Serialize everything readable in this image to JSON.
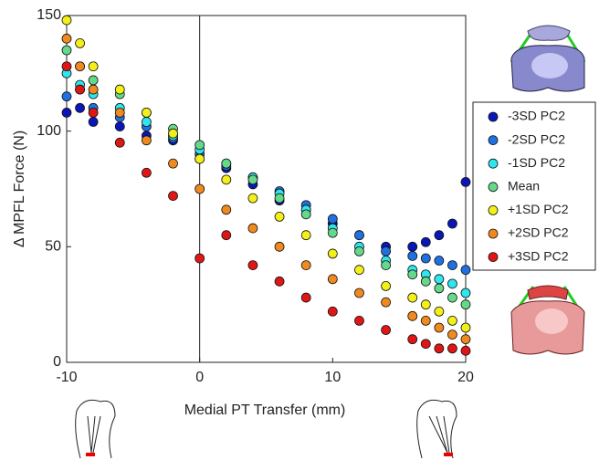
{
  "chart_data": {
    "type": "scatter",
    "xlabel": "Medial PT Transfer (mm)",
    "ylabel": "Δ MPFL Force (N)",
    "xlim": [
      -10,
      20
    ],
    "ylim": [
      0,
      150
    ],
    "xticks": [
      -10,
      0,
      10,
      20
    ],
    "yticks": [
      0,
      50,
      100,
      150
    ],
    "x": [
      -10,
      -9,
      -8,
      -6,
      -4,
      -2,
      0,
      2,
      4,
      6,
      8,
      10,
      12,
      14,
      16,
      17,
      18,
      19,
      20
    ],
    "series": [
      {
        "name": "-3SD PC2",
        "color": "#0b16b8",
        "values": [
          108,
          110,
          104,
          102,
          98,
          96,
          88,
          84,
          77,
          70,
          66,
          60,
          55,
          50,
          50,
          52,
          55,
          60,
          78
        ]
      },
      {
        "name": "-2SD PC2",
        "color": "#2070e0",
        "values": [
          115,
          118,
          110,
          106,
          102,
          97,
          90,
          85,
          80,
          74,
          68,
          62,
          55,
          48,
          46,
          45,
          44,
          42,
          40
        ]
      },
      {
        "name": "-1SD PC2",
        "color": "#2ee6ee",
        "values": [
          125,
          120,
          116,
          110,
          104,
          98,
          92,
          86,
          80,
          73,
          66,
          58,
          50,
          44,
          40,
          38,
          36,
          34,
          30
        ]
      },
      {
        "name": "Mean",
        "color": "#66d88a",
        "values": [
          135,
          128,
          122,
          116,
          108,
          101,
          94,
          86,
          79,
          71,
          64,
          56,
          48,
          42,
          38,
          35,
          32,
          28,
          25
        ]
      },
      {
        "name": "+1SD PC2",
        "color": "#f2f018",
        "values": [
          148,
          138,
          128,
          118,
          108,
          99,
          88,
          79,
          71,
          63,
          55,
          47,
          40,
          33,
          28,
          25,
          22,
          18,
          15
        ]
      },
      {
        "name": "+2SD PC2",
        "color": "#f08a1e",
        "values": [
          140,
          128,
          118,
          108,
          96,
          86,
          75,
          66,
          58,
          50,
          42,
          36,
          30,
          26,
          20,
          18,
          15,
          12,
          10
        ]
      },
      {
        "name": "+3SD PC2",
        "color": "#e01616",
        "values": [
          128,
          118,
          108,
          95,
          82,
          72,
          45,
          55,
          42,
          35,
          28,
          22,
          18,
          14,
          10,
          8,
          6,
          6,
          5
        ]
      }
    ]
  }
}
